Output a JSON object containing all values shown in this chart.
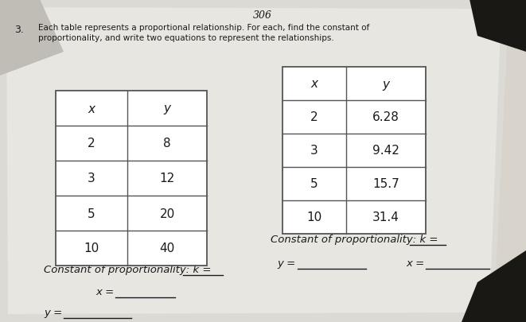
{
  "bg_paper": "#d8d4cc",
  "bg_dark_corner_tl": "#5a5550",
  "bg_dark_corner_tr": "#2a2520",
  "paper_color": "#e8e6e0",
  "table_bg": "#f0eeea",
  "table_line_color": "#555555",
  "font_color": "#1a1a1a",
  "page_number": "306",
  "problem_number": "3.",
  "instruction_line1": "Each table represents a proportional relationship. For each, find the constant of",
  "instruction_line2": "proportionality, and write two equations to represent the relationships.",
  "table1": {
    "headers": [
      "x",
      "y"
    ],
    "rows": [
      [
        "2",
        "8"
      ],
      [
        "3",
        "12"
      ],
      [
        "5",
        "20"
      ],
      [
        "10",
        "40"
      ]
    ]
  },
  "table2": {
    "headers": [
      "x",
      "y"
    ],
    "rows": [
      [
        "2",
        "6.28"
      ],
      [
        "3",
        "9.42"
      ],
      [
        "5",
        "15.7"
      ],
      [
        "10",
        "31.4"
      ]
    ]
  },
  "label_const": "Constant of proportionality: k =",
  "label_x": "x =",
  "label_y": "y ="
}
